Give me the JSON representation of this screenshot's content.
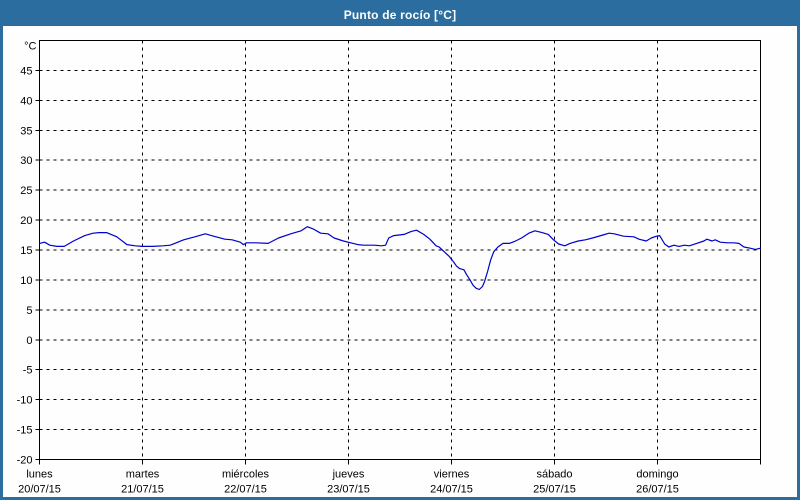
{
  "header": {
    "title": "Punto de rocío [°C]",
    "bg_color": "#2a6d9e",
    "text_color": "#ffffff"
  },
  "chart_data": {
    "type": "line",
    "title": "Punto de rocío [°C]",
    "grid": "dashed",
    "grid_color": "#000000",
    "background_color": "#fdfefd",
    "y_axis": {
      "unit_label": "°C",
      "min": -20,
      "max": 50,
      "tick_step": 5,
      "ticks": [
        45,
        40,
        35,
        30,
        25,
        20,
        15,
        10,
        5,
        0,
        -5,
        -10,
        -15,
        -20
      ]
    },
    "x_axis": {
      "day_count": 7,
      "labels": [
        {
          "name": "lunes",
          "date": "20/07/15"
        },
        {
          "name": "martes",
          "date": "21/07/15"
        },
        {
          "name": "miércoles",
          "date": "22/07/15"
        },
        {
          "name": "jueves",
          "date": "23/07/15"
        },
        {
          "name": "viernes",
          "date": "24/07/15"
        },
        {
          "name": "sábado",
          "date": "25/07/15"
        },
        {
          "name": "domingo",
          "date": "26/07/15"
        }
      ]
    },
    "series": [
      {
        "label": "Punto de rocío [°C]",
        "color": "#0000cc",
        "x": [
          0.0,
          0.05,
          0.1,
          0.17,
          0.24,
          0.33,
          0.44,
          0.52,
          0.58,
          0.65,
          0.75,
          0.85,
          0.93,
          1.0,
          1.1,
          1.2,
          1.27,
          1.4,
          1.51,
          1.61,
          1.69,
          1.8,
          1.87,
          1.95,
          1.98,
          2.01,
          2.1,
          2.22,
          2.32,
          2.44,
          2.54,
          2.6,
          2.66,
          2.73,
          2.8,
          2.86,
          2.95,
          3.02,
          3.09,
          3.15,
          3.25,
          3.32,
          3.36,
          3.39,
          3.44,
          3.54,
          3.61,
          3.66,
          3.73,
          3.79,
          3.85,
          3.88,
          3.93,
          3.98,
          4.02,
          4.05,
          4.08,
          4.12,
          4.15,
          4.18,
          4.21,
          4.24,
          4.27,
          4.3,
          4.32,
          4.35,
          4.38,
          4.41,
          4.45,
          4.5,
          4.56,
          4.61,
          4.68,
          4.75,
          4.81,
          4.88,
          4.94,
          4.99,
          5.04,
          5.1,
          5.15,
          5.23,
          5.3,
          5.37,
          5.47,
          5.53,
          5.58,
          5.67,
          5.77,
          5.82,
          5.89,
          5.94,
          5.99,
          6.02,
          6.07,
          6.11,
          6.16,
          6.21,
          6.26,
          6.31,
          6.38,
          6.45,
          6.48,
          6.53,
          6.56,
          6.61,
          6.68,
          6.74,
          6.79,
          6.84,
          6.9,
          6.95,
          7.0
        ],
        "y": [
          16.1,
          16.3,
          15.8,
          15.6,
          15.6,
          16.5,
          17.4,
          17.8,
          17.9,
          17.9,
          17.2,
          15.9,
          15.7,
          15.6,
          15.6,
          15.7,
          15.8,
          16.7,
          17.2,
          17.7,
          17.3,
          16.8,
          16.7,
          16.3,
          15.9,
          16.2,
          16.2,
          16.1,
          17.0,
          17.7,
          18.2,
          18.9,
          18.5,
          17.8,
          17.7,
          17.0,
          16.5,
          16.2,
          15.9,
          15.8,
          15.8,
          15.7,
          15.8,
          17.0,
          17.4,
          17.6,
          18.1,
          18.3,
          17.6,
          16.8,
          15.7,
          15.5,
          14.7,
          13.9,
          13.0,
          12.3,
          11.9,
          11.7,
          10.8,
          10.0,
          9.1,
          8.6,
          8.4,
          8.9,
          9.7,
          11.4,
          13.3,
          14.7,
          15.5,
          16.1,
          16.1,
          16.4,
          17.0,
          17.8,
          18.2,
          17.9,
          17.6,
          16.7,
          16.0,
          15.7,
          16.1,
          16.5,
          16.7,
          17.0,
          17.5,
          17.8,
          17.7,
          17.3,
          17.2,
          16.8,
          16.5,
          17.0,
          17.3,
          17.4,
          16.0,
          15.5,
          15.8,
          15.6,
          15.8,
          15.7,
          16.1,
          16.5,
          16.8,
          16.5,
          16.7,
          16.3,
          16.2,
          16.2,
          16.1,
          15.5,
          15.3,
          15.1,
          15.3
        ]
      }
    ]
  }
}
